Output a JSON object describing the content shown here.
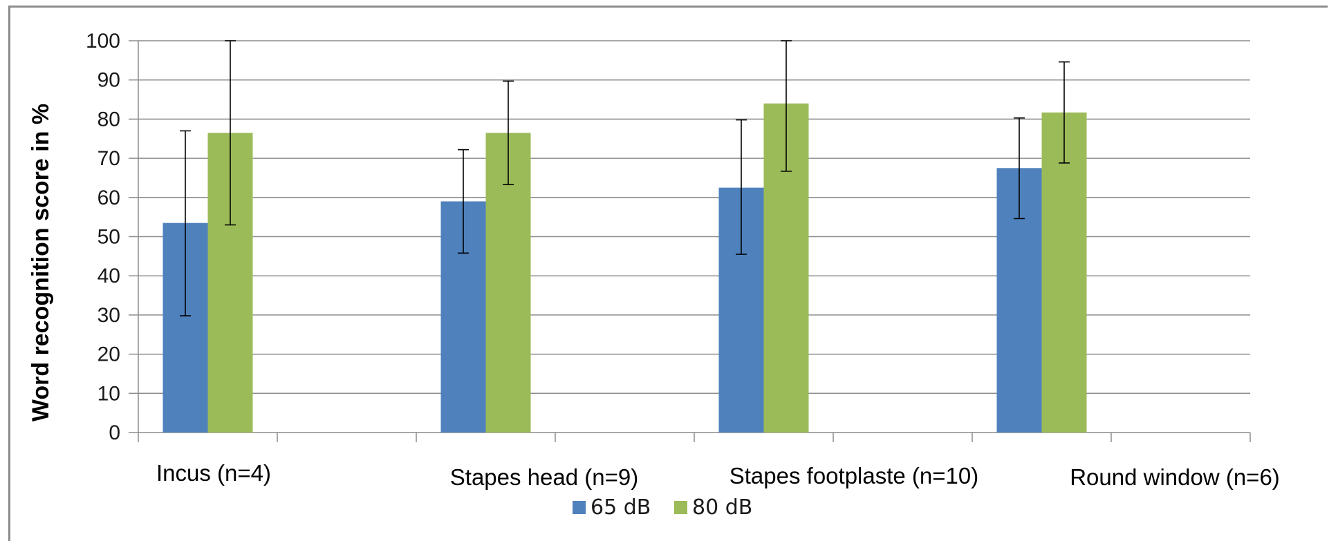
{
  "chart_data": {
    "type": "bar",
    "title": "",
    "xlabel": "",
    "ylabel": "Word recognition score in %",
    "ylim": [
      0,
      100
    ],
    "yticks": [
      0,
      10,
      20,
      30,
      40,
      50,
      60,
      70,
      80,
      90,
      100
    ],
    "grid": true,
    "legend_position": "bottom",
    "categories": [
      "Incus (n=4)",
      "Stapes head (n=9)",
      "Stapes footplaste (n=10)",
      "Round window (n=6)"
    ],
    "series": [
      {
        "name": "65 dB",
        "color": "#4f81bd",
        "values": [
          53.5,
          59,
          62.5,
          67.5
        ],
        "error_low": [
          29.8,
          45.8,
          45.5,
          54.6
        ],
        "error_high": [
          77,
          72.2,
          79.8,
          80.3
        ]
      },
      {
        "name": "80 dB",
        "color": "#9bbb59",
        "values": [
          76.5,
          76.5,
          84,
          81.7
        ],
        "error_low": [
          53,
          63.3,
          66.7,
          68.8
        ],
        "error_high": [
          100,
          89.7,
          100,
          94.6
        ]
      }
    ]
  }
}
